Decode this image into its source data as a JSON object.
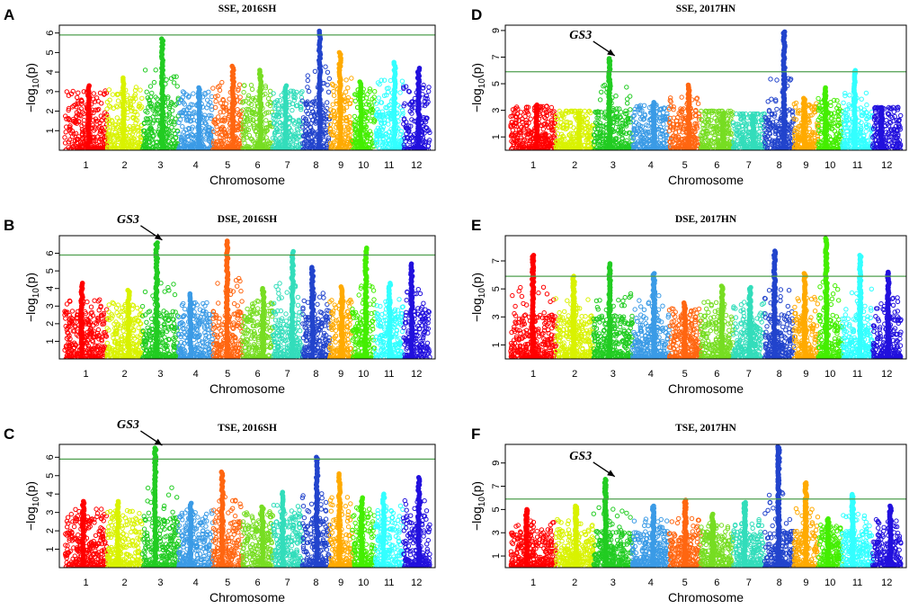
{
  "figure": {
    "xlabel": "Chromosome",
    "ylabel_prefix": "−log",
    "ylabel_sub": "10",
    "ylabel_suffix": "(p)"
  },
  "chart_data": [
    {
      "id": "A",
      "type": "scatter",
      "letter": "A",
      "title": "SSE, 2016SH",
      "xlabel": "Chromosome",
      "ylabel": "−log10(p)",
      "categories": [
        "1",
        "2",
        "3",
        "4",
        "5",
        "6",
        "7",
        "8",
        "9",
        "10",
        "11",
        "12"
      ],
      "chromosome_colors": [
        "#ff0000",
        "#d9f200",
        "#22cc22",
        "#3b9be6",
        "#ff6611",
        "#77dd22",
        "#33ddbb",
        "#2244cc",
        "#ffaa00",
        "#44ee00",
        "#33ffff",
        "#2211dd"
      ],
      "ylim": [
        0,
        6.4
      ],
      "yticks": [
        1,
        2,
        3,
        4,
        5,
        6
      ],
      "threshold": 5.9,
      "chromosome_max": [
        3.3,
        3.7,
        5.7,
        3.2,
        4.3,
        4.1,
        3.3,
        6.1,
        5.0,
        3.5,
        4.5,
        4.2
      ]
    },
    {
      "id": "B",
      "type": "scatter",
      "letter": "B",
      "title": "DSE, 2016SH",
      "xlabel": "Chromosome",
      "ylabel": "−log10(p)",
      "categories": [
        "1",
        "2",
        "3",
        "4",
        "5",
        "6",
        "7",
        "8",
        "9",
        "10",
        "11",
        "12"
      ],
      "chromosome_colors": [
        "#ff0000",
        "#d9f200",
        "#22cc22",
        "#3b9be6",
        "#ff6611",
        "#77dd22",
        "#33ddbb",
        "#2244cc",
        "#ffaa00",
        "#44ee00",
        "#33ffff",
        "#2211dd"
      ],
      "ylim": [
        0,
        7.0
      ],
      "yticks": [
        1,
        2,
        3,
        4,
        5,
        6
      ],
      "threshold": 5.9,
      "chromosome_max": [
        4.3,
        3.9,
        6.6,
        3.7,
        6.7,
        4.0,
        6.1,
        5.2,
        4.1,
        6.3,
        4.3,
        5.4
      ],
      "annotation": {
        "label": "GS3",
        "chromosome": 3
      }
    },
    {
      "id": "C",
      "type": "scatter",
      "letter": "C",
      "title": "TSE, 2016SH",
      "xlabel": "Chromosome",
      "ylabel": "−log10(p)",
      "categories": [
        "1",
        "2",
        "3",
        "4",
        "5",
        "6",
        "7",
        "8",
        "9",
        "10",
        "11",
        "12"
      ],
      "chromosome_colors": [
        "#ff0000",
        "#d9f200",
        "#22cc22",
        "#3b9be6",
        "#ff6611",
        "#77dd22",
        "#33ddbb",
        "#2244cc",
        "#ffaa00",
        "#44ee00",
        "#33ffff",
        "#2211dd"
      ],
      "ylim": [
        0,
        6.7
      ],
      "yticks": [
        1,
        2,
        3,
        4,
        5,
        6
      ],
      "threshold": 5.9,
      "chromosome_max": [
        3.6,
        3.6,
        6.5,
        3.5,
        5.2,
        3.3,
        4.1,
        6.0,
        5.1,
        3.8,
        4.0,
        4.9
      ],
      "annotation": {
        "label": "GS3",
        "chromosome": 3
      }
    },
    {
      "id": "D",
      "type": "scatter",
      "letter": "D",
      "title": "SSE, 2017HN",
      "xlabel": "Chromosome",
      "ylabel": "−log10(p)",
      "categories": [
        "1",
        "2",
        "3",
        "4",
        "5",
        "6",
        "7",
        "8",
        "9",
        "10",
        "11",
        "12"
      ],
      "chromosome_colors": [
        "#ff0000",
        "#d9f200",
        "#22cc22",
        "#3b9be6",
        "#ff6611",
        "#77dd22",
        "#33ddbb",
        "#2244cc",
        "#ffaa00",
        "#44ee00",
        "#33ffff",
        "#2211dd"
      ],
      "ylim": [
        0,
        9.4
      ],
      "yticks": [
        1,
        3,
        5,
        7,
        9
      ],
      "threshold": 5.9,
      "chromosome_max": [
        3.4,
        2.8,
        6.9,
        3.6,
        4.9,
        2.8,
        2.6,
        8.9,
        3.9,
        4.7,
        6.0,
        3.2
      ],
      "annotation": {
        "label": "GS3",
        "chromosome": 3
      }
    },
    {
      "id": "E",
      "type": "scatter",
      "letter": "E",
      "title": "DSE, 2017HN",
      "xlabel": "Chromosome",
      "ylabel": "−log10(p)",
      "categories": [
        "1",
        "2",
        "3",
        "4",
        "5",
        "6",
        "7",
        "8",
        "9",
        "10",
        "11",
        "12"
      ],
      "chromosome_colors": [
        "#ff0000",
        "#d9f200",
        "#22cc22",
        "#3b9be6",
        "#ff6611",
        "#77dd22",
        "#33ddbb",
        "#2244cc",
        "#ffaa00",
        "#44ee00",
        "#33ffff",
        "#2211dd"
      ],
      "ylim": [
        0,
        8.8
      ],
      "yticks": [
        1,
        3,
        5,
        7
      ],
      "threshold": 5.9,
      "chromosome_max": [
        7.4,
        5.9,
        6.8,
        6.1,
        4.0,
        5.2,
        5.1,
        7.7,
        6.1,
        8.6,
        7.4,
        6.2
      ]
    },
    {
      "id": "F",
      "type": "scatter",
      "letter": "F",
      "title": "TSE, 2017HN",
      "xlabel": "Chromosome",
      "ylabel": "−log10(p)",
      "categories": [
        "1",
        "2",
        "3",
        "4",
        "5",
        "6",
        "7",
        "8",
        "9",
        "10",
        "11",
        "12"
      ],
      "chromosome_colors": [
        "#ff0000",
        "#d9f200",
        "#22cc22",
        "#3b9be6",
        "#ff6611",
        "#77dd22",
        "#33ddbb",
        "#2244cc",
        "#ffaa00",
        "#44ee00",
        "#33ffff",
        "#2211dd"
      ],
      "ylim": [
        0,
        10.6
      ],
      "yticks": [
        1,
        3,
        5,
        7,
        9
      ],
      "threshold": 5.9,
      "chromosome_max": [
        5.0,
        5.3,
        7.6,
        5.3,
        5.8,
        4.6,
        5.6,
        10.4,
        7.3,
        4.2,
        6.3,
        5.3
      ],
      "annotation": {
        "label": "GS3",
        "chromosome": 3
      }
    }
  ]
}
